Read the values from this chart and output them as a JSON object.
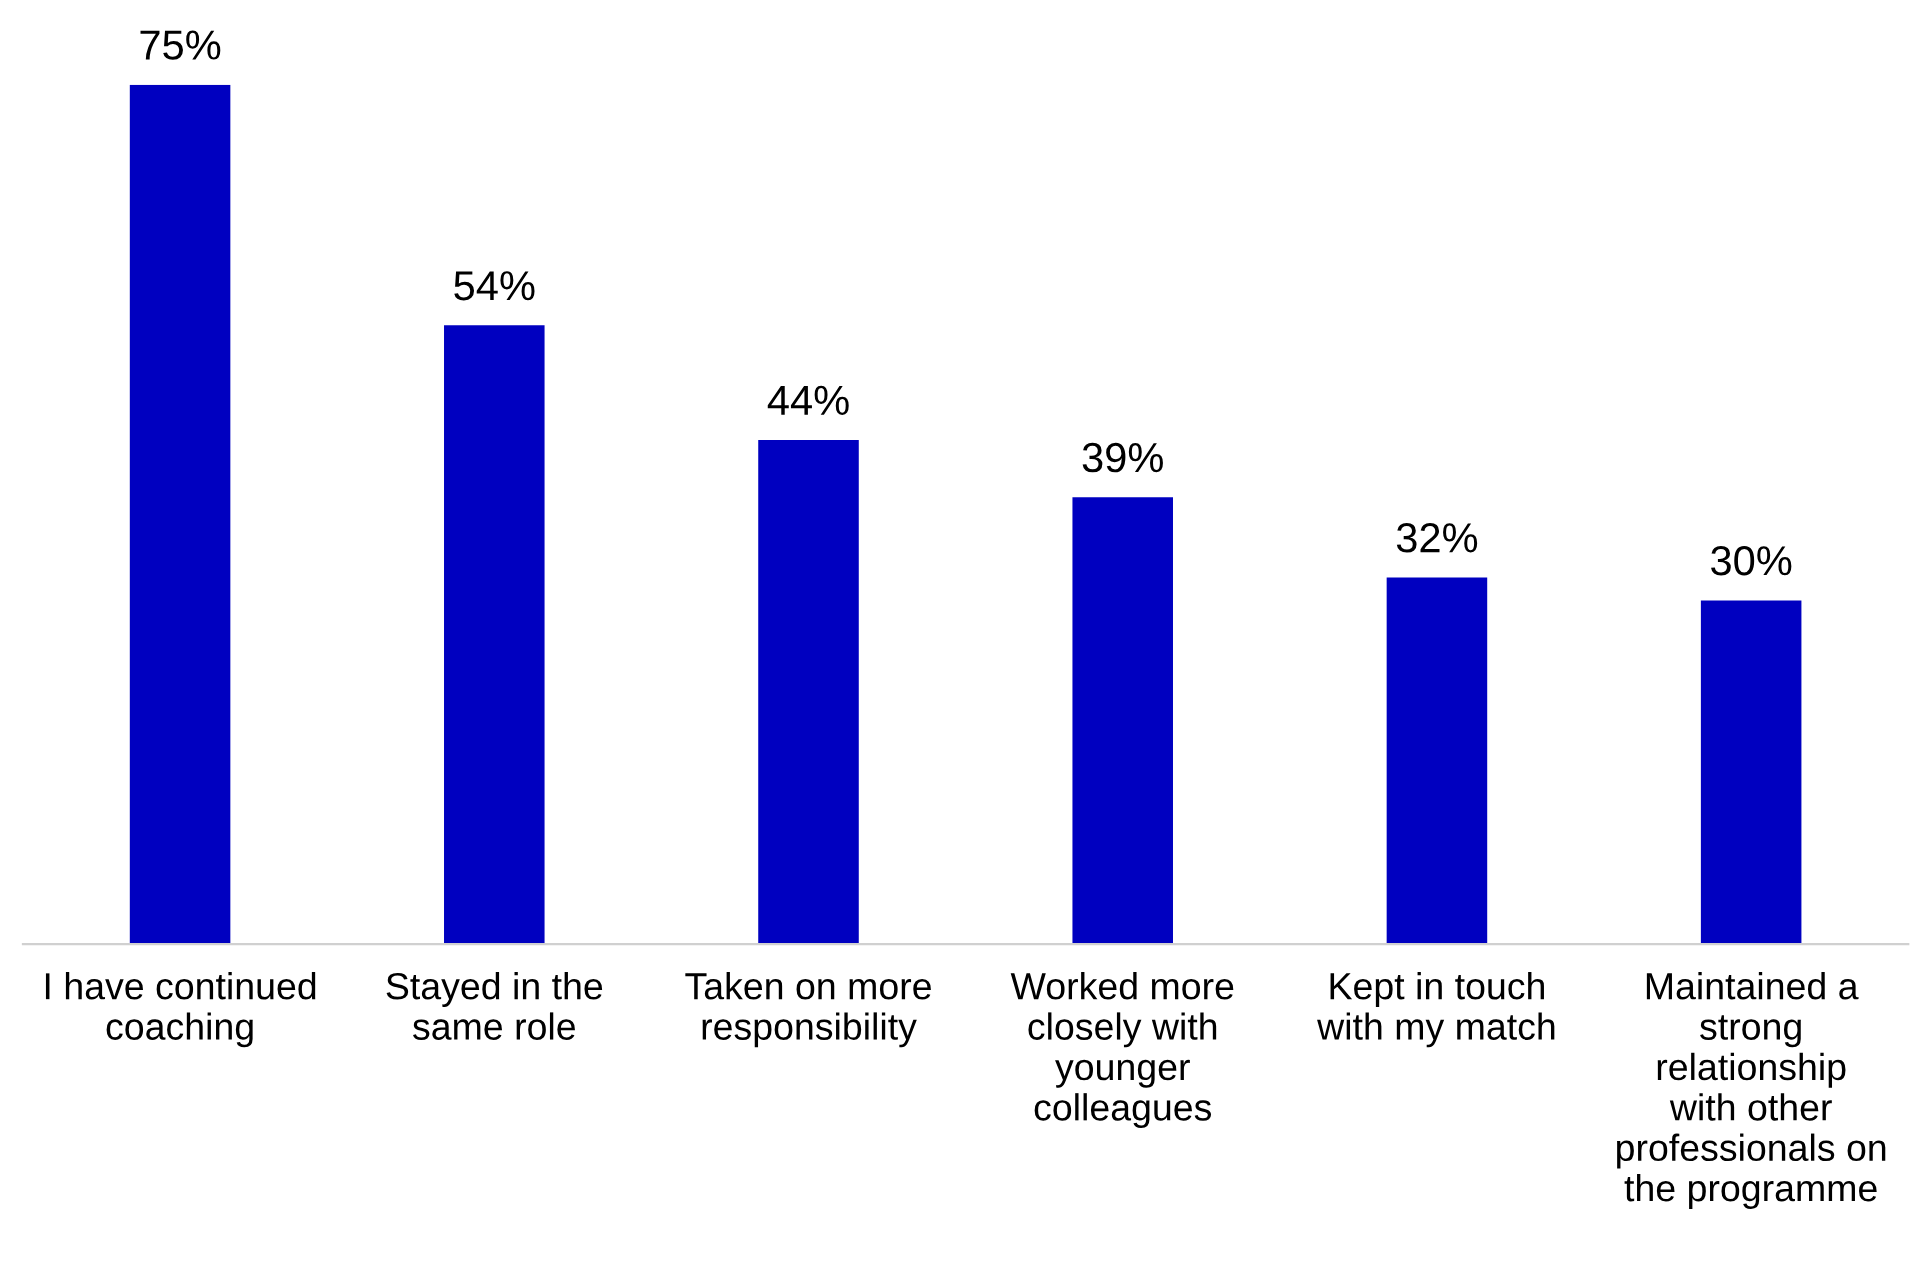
{
  "chart_data": {
    "type": "bar",
    "categories": [
      "I have continued coaching",
      "Stayed in the same role",
      "Taken on more responsibility",
      "Worked more closely with younger colleagues",
      "Kept in touch with my match",
      "Maintained a strong relationship with other professionals on the programme"
    ],
    "values": [
      75,
      54,
      44,
      39,
      32,
      30
    ],
    "value_labels": [
      "75%",
      "54%",
      "44%",
      "39%",
      "32%",
      "30%"
    ],
    "color": "#0000c0"
  }
}
